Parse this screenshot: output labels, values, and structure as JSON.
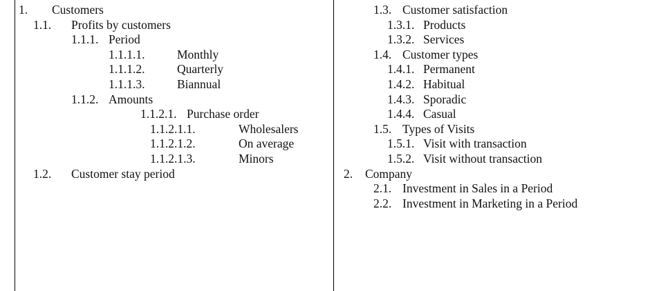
{
  "columns": [
    {
      "items": [
        {
          "number": "1.",
          "text": "Customers"
        },
        {
          "number": "1.1.",
          "text": "Profits by customers"
        },
        {
          "number": "1.1.1.",
          "text": "Period"
        },
        {
          "number": "1.1.1.1.",
          "text": "Monthly"
        },
        {
          "number": "1.1.1.2.",
          "text": "Quarterly"
        },
        {
          "number": "1.1.1.3.",
          "text": "Biannual"
        },
        {
          "number": "1.1.2.",
          "text": "Amounts"
        },
        {
          "number": "1.1.2.1.",
          "text": "Purchase order"
        },
        {
          "number": "1.1.2.1.1.",
          "text": "Wholesalers"
        },
        {
          "number": "1.1.2.1.2.",
          "text": "On average"
        },
        {
          "number": "1.1.2.1.3.",
          "text": "Minors"
        },
        {
          "number": "1.2.",
          "text": "Customer stay period"
        }
      ]
    },
    {
      "items": [
        {
          "number": "1.3.",
          "text": "Customer satisfaction"
        },
        {
          "number": "1.3.1.",
          "text": "Products"
        },
        {
          "number": "1.3.2.",
          "text": "Services"
        },
        {
          "number": "1.4.",
          "text": "Customer types"
        },
        {
          "number": "1.4.1.",
          "text": "Permanent"
        },
        {
          "number": "1.4.2.",
          "text": "Habitual"
        },
        {
          "number": "1.4.3.",
          "text": "Sporadic"
        },
        {
          "number": "1.4.4.",
          "text": "Casual"
        },
        {
          "number": "1.5.",
          "text": "Types of Visits"
        },
        {
          "number": "1.5.1.",
          "text": "Visit with transaction"
        },
        {
          "number": "1.5.2.",
          "text": "Visit without transaction"
        },
        {
          "number": "2.",
          "text": "Company"
        },
        {
          "number": "2.1.",
          "text": "Investment in Sales in a Period"
        },
        {
          "number": "2.2.",
          "text": "Investment in Marketing in a Period"
        }
      ]
    }
  ]
}
